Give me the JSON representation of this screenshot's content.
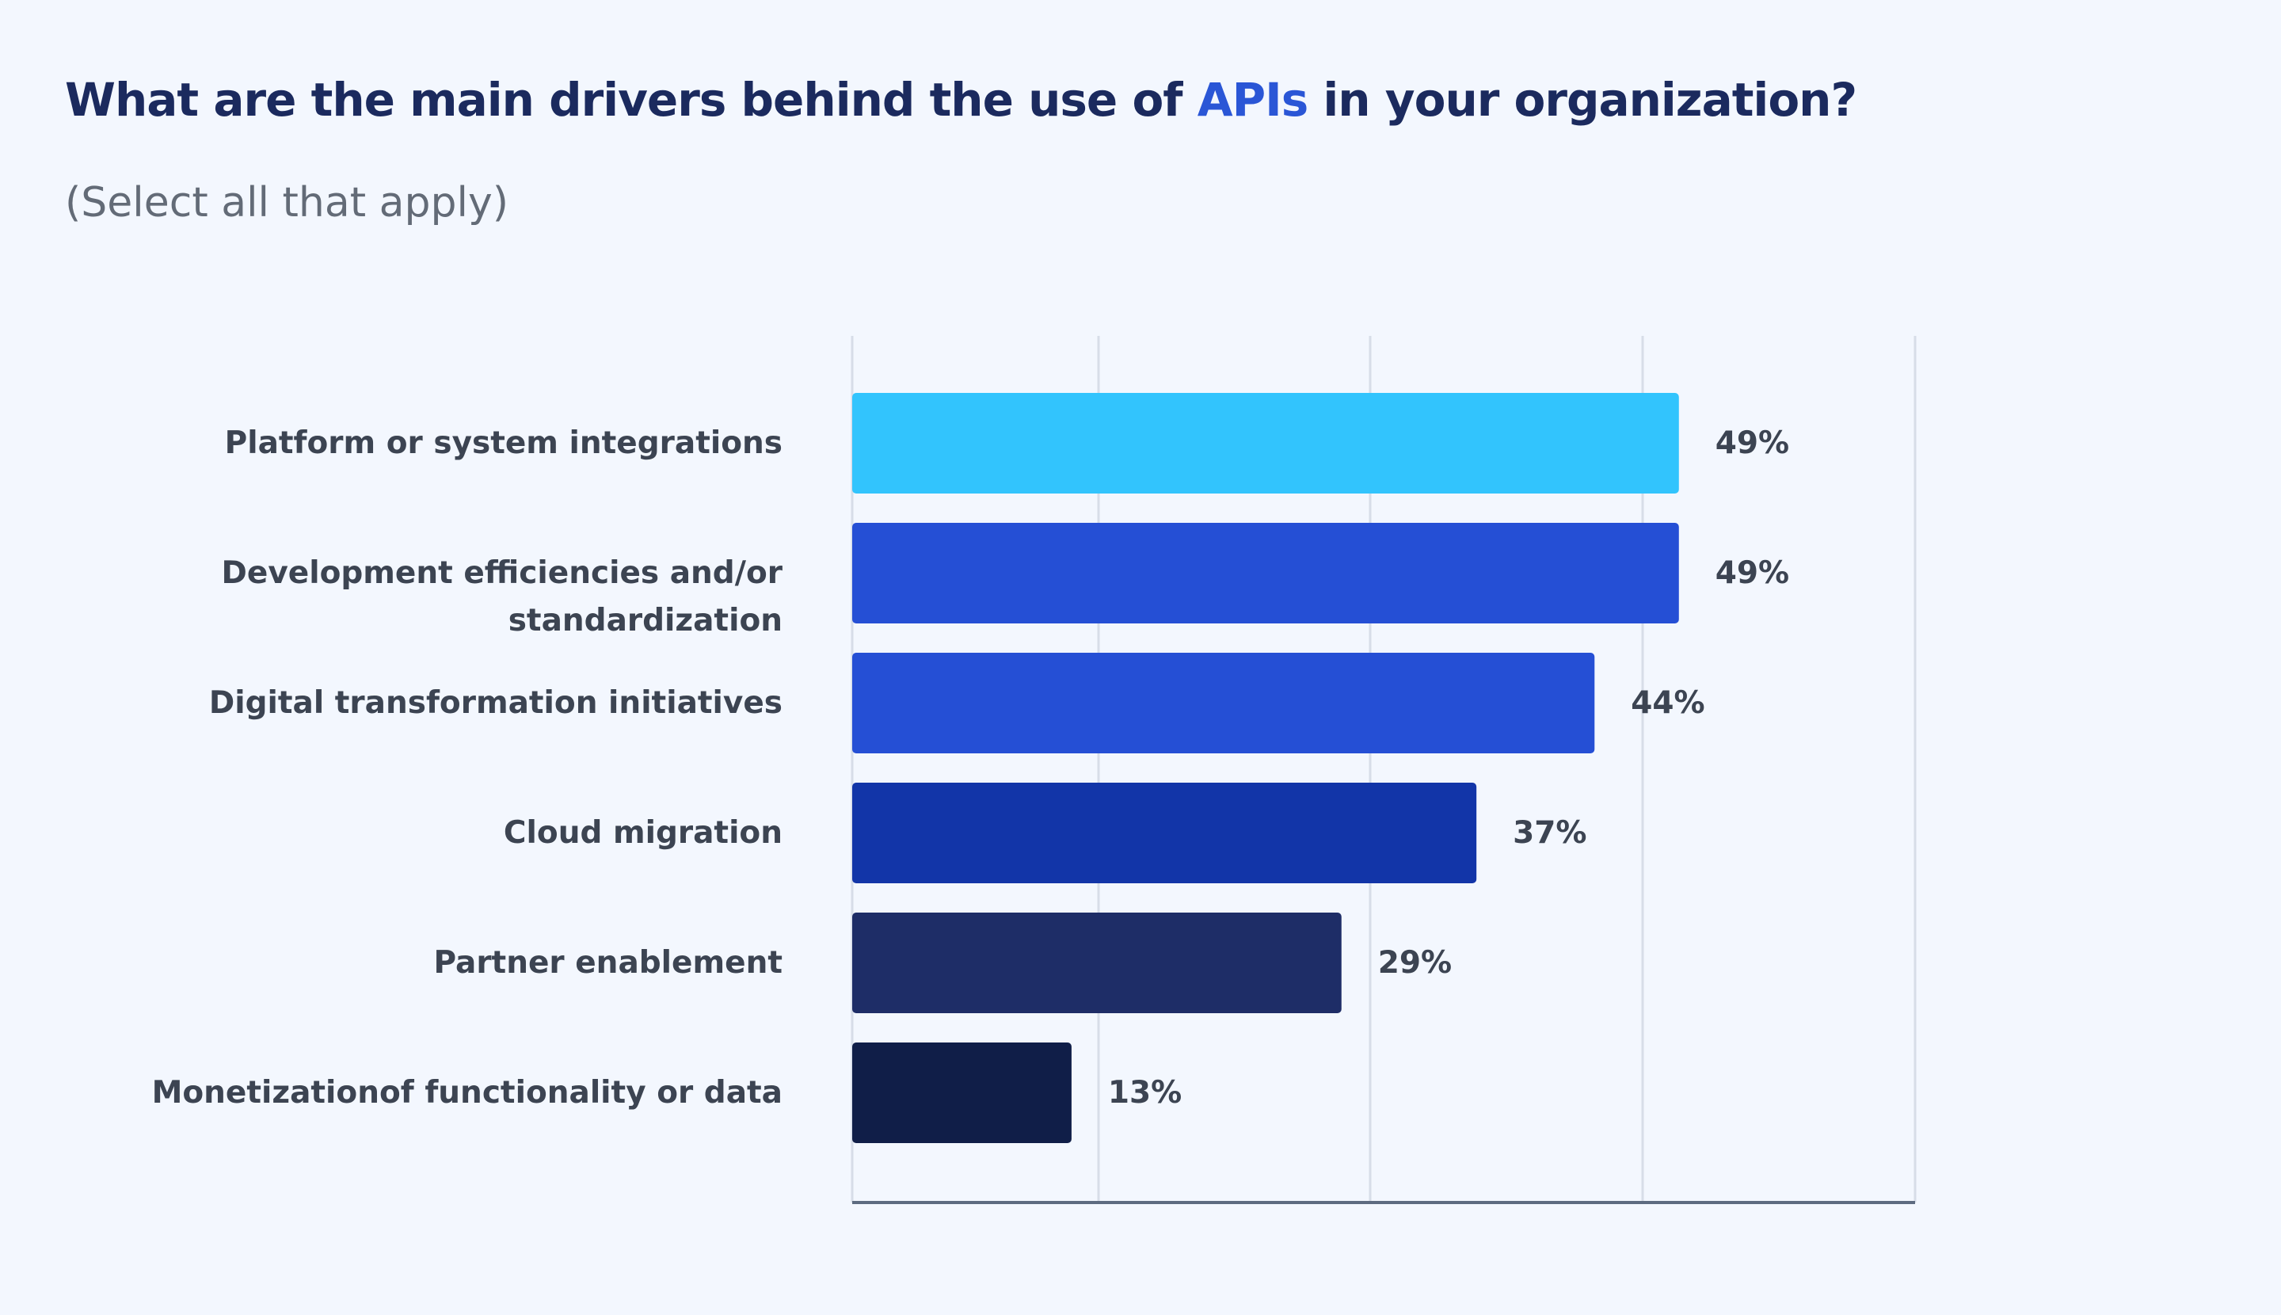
{
  "header": {
    "title_before": "What are the main drivers behind the use of ",
    "title_accent": "APIs",
    "title_after": " in your organization?",
    "subtitle": "(Select all that apply)"
  },
  "colors": {
    "title": "#1b2a5e",
    "accent": "#2a56d6",
    "subtitle": "#636b77",
    "label": "#3c4452",
    "grid": "#d7dde8",
    "axis": "#5d6b80"
  },
  "chart_data": {
    "type": "bar",
    "orientation": "horizontal",
    "title": "What are the main drivers behind the use of APIs in your organization?",
    "subtitle": "(Select all that apply)",
    "xlabel": "",
    "ylabel": "",
    "xlim": [
      0,
      63
    ],
    "grid": true,
    "categories": [
      [
        "Platform or system integrations"
      ],
      [
        "Development efficiencies and/or",
        "standardization"
      ],
      [
        "Digital transformation initiatives"
      ],
      [
        "Cloud migration"
      ],
      [
        "Partner enablement"
      ],
      [
        "Monetizationof functionality or data"
      ]
    ],
    "values": [
      49,
      49,
      44,
      37,
      29,
      13
    ],
    "value_labels": [
      "49%",
      "49%",
      "44%",
      "37%",
      "29%",
      "13%"
    ],
    "bar_colors": [
      "#32c4fd",
      "#254fd5",
      "#254fd5",
      "#1235a8",
      "#1e2d67",
      "#101e48"
    ]
  }
}
